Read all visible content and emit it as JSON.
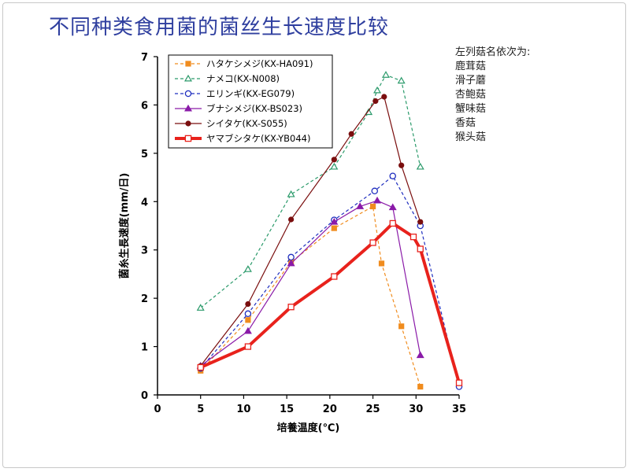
{
  "slide": {
    "title": "不同种类食用菌的菌丝生长速度比较",
    "note_header": "左列菇名依次为:",
    "note_items": [
      "鹿茸菇",
      "滑子蘑",
      "杏鲍菇",
      "蟹味菇",
      "香菇",
      "猴头菇"
    ]
  },
  "chart_data": {
    "type": "line",
    "title": "",
    "xlabel": "培養温度(℃)",
    "ylabel": "菌糸生長速度(mm/日)",
    "xlim": [
      0,
      35
    ],
    "ylim": [
      0,
      7
    ],
    "xticks": [
      0,
      5,
      10,
      15,
      20,
      25,
      30,
      35
    ],
    "yticks": [
      0,
      1,
      2,
      3,
      4,
      5,
      6,
      7
    ],
    "grid": false,
    "legend": "top-left",
    "series": [
      {
        "name": "ハタケシメジ(KX-HA091)",
        "color": "#f08c1e",
        "dash": "4,3",
        "marker": "square-filled",
        "width": 1.2,
        "points": [
          [
            5,
            0.5
          ],
          [
            10.5,
            1.55
          ],
          [
            15.5,
            2.75
          ],
          [
            20.5,
            3.45
          ],
          [
            25,
            3.9
          ],
          [
            26,
            2.72
          ],
          [
            28.3,
            1.42
          ],
          [
            30.5,
            0.17
          ]
        ]
      },
      {
        "name": "ナメコ(KX-N008)",
        "color": "#2a9a6a",
        "dash": "4,3",
        "marker": "triangle-open",
        "width": 1.2,
        "points": [
          [
            5,
            1.8
          ],
          [
            10.5,
            2.6
          ],
          [
            15.5,
            4.15
          ],
          [
            20.5,
            4.72
          ],
          [
            24.5,
            5.85
          ],
          [
            25.5,
            6.3
          ],
          [
            26.5,
            6.62
          ],
          [
            28.3,
            6.5
          ],
          [
            30.5,
            4.72
          ]
        ]
      },
      {
        "name": "エリンギ(KX-EG079)",
        "color": "#1f2ebf",
        "dash": "4,3",
        "marker": "circle-open",
        "width": 1.2,
        "points": [
          [
            5,
            0.55
          ],
          [
            10.5,
            1.68
          ],
          [
            15.5,
            2.85
          ],
          [
            20.5,
            3.62
          ],
          [
            25.2,
            4.22
          ],
          [
            27.3,
            4.53
          ],
          [
            30.5,
            3.5
          ],
          [
            35,
            0.17
          ]
        ]
      },
      {
        "name": "ブナシメジ(KX-BS023)",
        "color": "#8a1aa8",
        "dash": "",
        "marker": "triangle-filled",
        "width": 1.2,
        "points": [
          [
            5,
            0.6
          ],
          [
            10.5,
            1.32
          ],
          [
            15.5,
            2.72
          ],
          [
            20.5,
            3.58
          ],
          [
            23.5,
            3.9
          ],
          [
            25.5,
            4.02
          ],
          [
            27.3,
            3.88
          ],
          [
            30.5,
            0.82
          ]
        ]
      },
      {
        "name": "シイタケ(KX-S055)",
        "color": "#7a0e0e",
        "dash": "",
        "marker": "circle-filled",
        "width": 1.2,
        "points": [
          [
            5,
            0.6
          ],
          [
            10.5,
            1.88
          ],
          [
            15.5,
            3.63
          ],
          [
            20.5,
            4.87
          ],
          [
            22.5,
            5.4
          ],
          [
            25.3,
            6.08
          ],
          [
            26.3,
            6.17
          ],
          [
            28.3,
            4.75
          ],
          [
            30.5,
            3.58
          ]
        ]
      },
      {
        "name": "ヤマブシタケ(KX-YB044)",
        "color": "#e8221c",
        "dash": "",
        "marker": "square-open",
        "width": 4,
        "points": [
          [
            5,
            0.57
          ],
          [
            10.5,
            1.0
          ],
          [
            15.5,
            1.82
          ],
          [
            20.5,
            2.45
          ],
          [
            25,
            3.15
          ],
          [
            27.3,
            3.55
          ],
          [
            29.7,
            3.27
          ],
          [
            30.5,
            3.02
          ],
          [
            35,
            0.25
          ]
        ]
      }
    ]
  }
}
